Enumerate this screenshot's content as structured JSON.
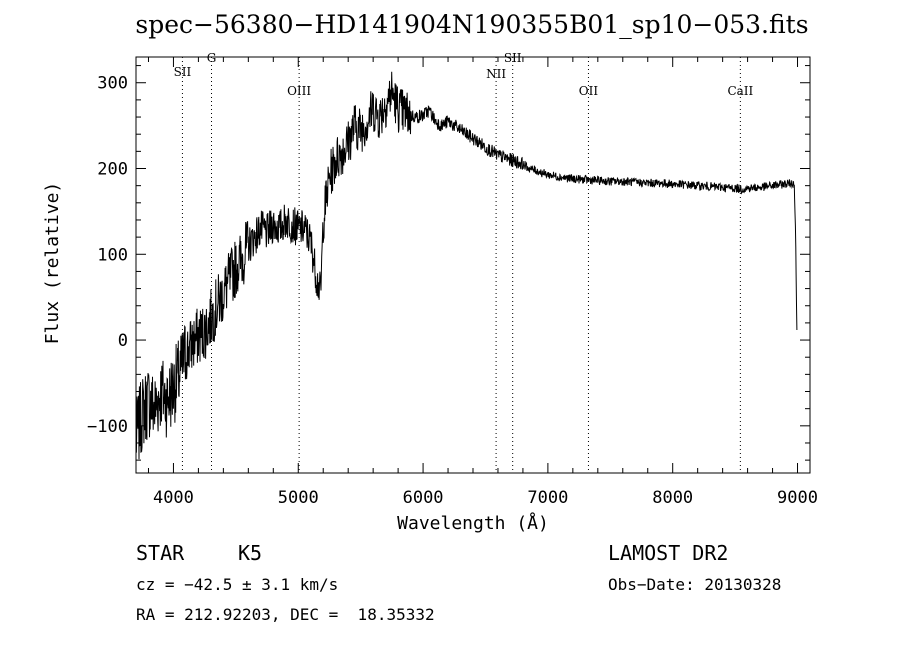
{
  "chart_data": {
    "type": "line",
    "title": "spec−56380−HD141904N190355B01_sp10−053.fits",
    "xlabel": "Wavelength (Å)",
    "ylabel": "Flux (relative)",
    "xlim": [
      3700,
      9100
    ],
    "ylim": [
      -155,
      330
    ],
    "x_ticks": [
      4000,
      5000,
      6000,
      7000,
      8000,
      9000
    ],
    "y_ticks": [
      -100,
      0,
      100,
      200,
      300
    ],
    "y_tick_labels": [
      "−100",
      "0",
      "100",
      "200",
      "300"
    ],
    "grid": false,
    "line_color": "#000000",
    "series": [
      {
        "x": [
          3700,
          3750,
          3800,
          3850,
          3900,
          3950,
          4000,
          4050,
          4100,
          4150,
          4200,
          4250,
          4300,
          4350,
          4400,
          4450,
          4500,
          4550,
          4600,
          4650,
          4700,
          4750,
          4800,
          4850,
          4900,
          4950,
          5000,
          5050,
          5100,
          5150,
          5180,
          5200,
          5250,
          5300,
          5350,
          5400,
          5450,
          5500,
          5550,
          5600,
          5650,
          5700,
          5750,
          5800,
          5850,
          5900,
          5950,
          6000,
          6050,
          6100,
          6150,
          6200,
          6250,
          6300,
          6350,
          6400,
          6450,
          6500,
          6550,
          6600,
          6650,
          6700,
          6750,
          6800,
          6850,
          6900,
          6950,
          7000,
          7100,
          7200,
          7300,
          7400,
          7500,
          7600,
          7700,
          7800,
          7900,
          8000,
          8100,
          8200,
          8300,
          8400,
          8500,
          8550,
          8600,
          8700,
          8800,
          8900,
          8960,
          8975,
          8985,
          8995
        ],
        "y": [
          -115,
          -85,
          -70,
          -80,
          -60,
          -70,
          -55,
          -40,
          -15,
          -5,
          5,
          10,
          25,
          40,
          55,
          70,
          85,
          95,
          110,
          120,
          130,
          125,
          135,
          130,
          140,
          135,
          130,
          130,
          115,
          70,
          55,
          140,
          190,
          210,
          220,
          230,
          250,
          245,
          255,
          270,
          260,
          275,
          290,
          270,
          265,
          262,
          260,
          262,
          268,
          255,
          250,
          255,
          250,
          245,
          240,
          235,
          230,
          225,
          220,
          215,
          213,
          210,
          208,
          205,
          200,
          198,
          195,
          193,
          190,
          188,
          187,
          186,
          185,
          185,
          184,
          183,
          183,
          182,
          181,
          180,
          179,
          178,
          177,
          176,
          177,
          178,
          180,
          182,
          183,
          182,
          120,
          10
        ]
      }
    ],
    "lines": [
      {
        "label": "SII",
        "x": 4072
      },
      {
        "label": "G",
        "x": 4305
      },
      {
        "label": "OIII",
        "x": 5007
      },
      {
        "label": "NII",
        "x": 6585
      },
      {
        "label": "SII",
        "x": 6718
      },
      {
        "label": "OII",
        "x": 7325
      },
      {
        "label": "CaII",
        "x": 8542
      }
    ]
  },
  "info": {
    "class": "STAR",
    "subclass": "K5",
    "survey": "LAMOST DR2",
    "cz": "cz = −42.5 ± 3.1 km/s",
    "obs_date": "Obs−Date: 20130328",
    "radec": "RA = 212.92203, DEC =  18.35332"
  }
}
